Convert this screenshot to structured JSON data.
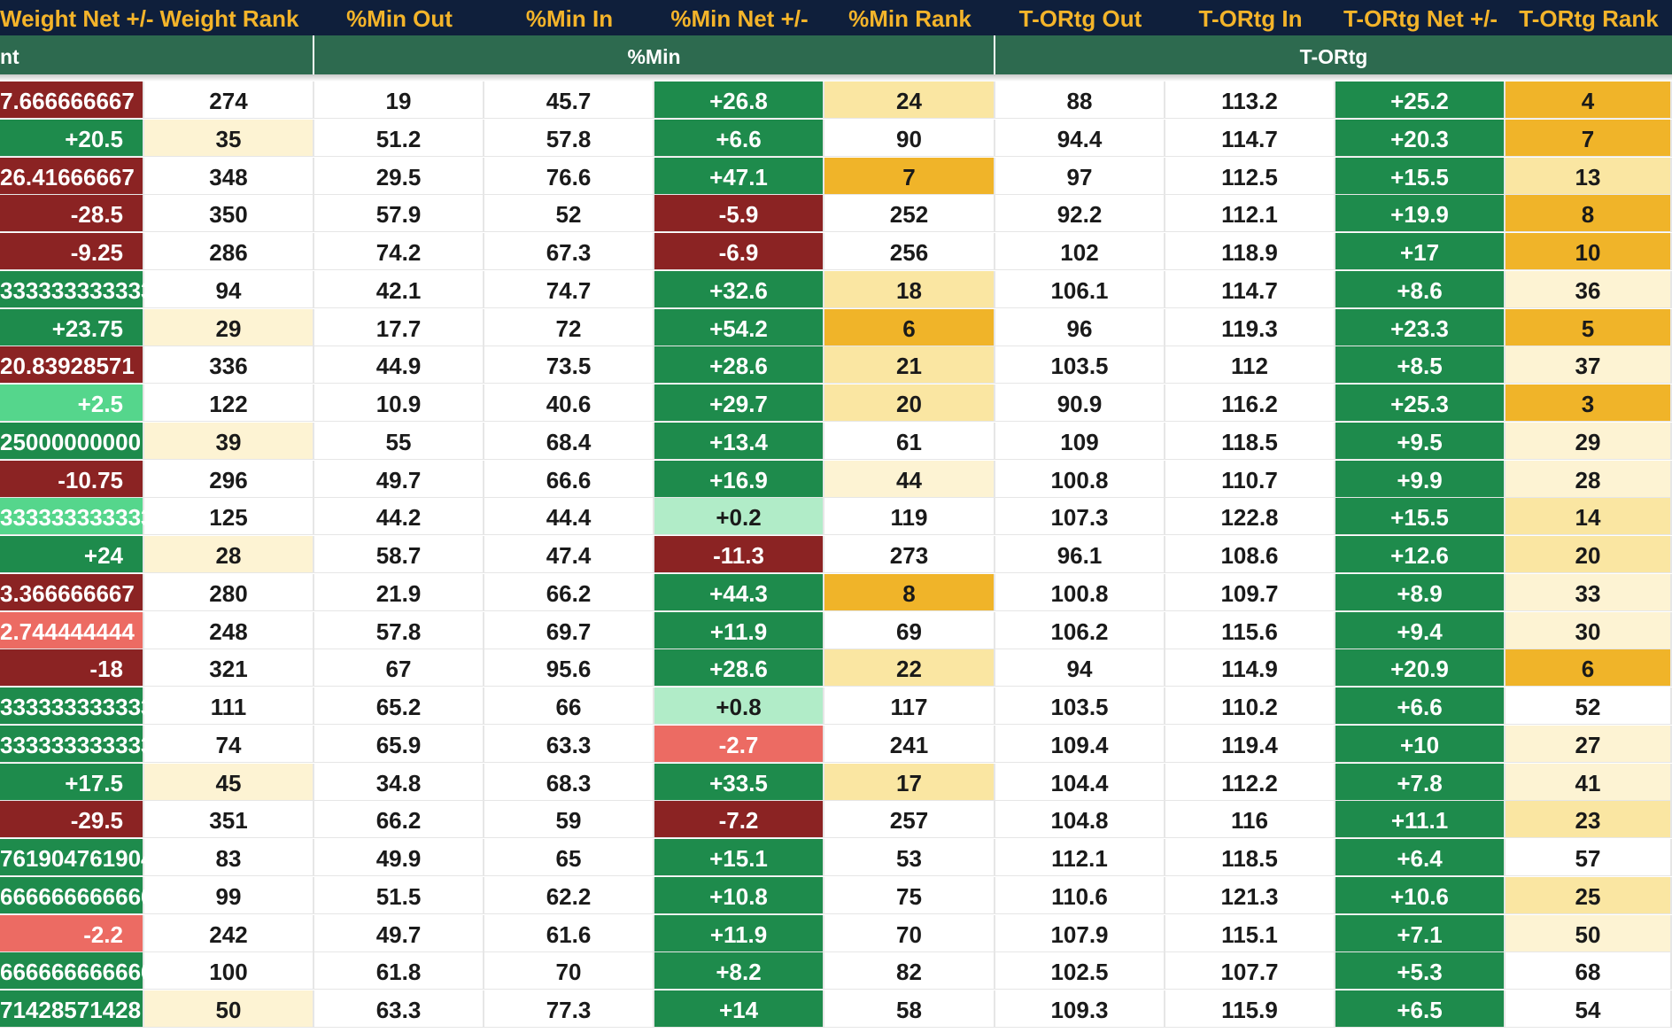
{
  "colors": {
    "header_bg": "#0f1f3b",
    "header_text": "#f4b42a",
    "group_bg": "#2d6a4f",
    "dr": "#8b2323",
    "lr": "#ec6b63",
    "dg": "#1e8b4c",
    "mg": "#55d68c",
    "lg": "#b1ecc8",
    "go": "#f0b429",
    "y": "#fae6a2",
    "ly": "#fdf3d3",
    "w": "#ffffff"
  },
  "headers": [
    "Weight Net +/-",
    "Weight Rank",
    "%Min Out",
    "%Min In",
    "%Min Net +/-",
    "%Min Rank",
    "T-ORtg Out",
    "T-ORtg In",
    "T-ORtg Net +/-",
    "T-ORtg Rank"
  ],
  "groups": [
    "nt",
    "",
    "%Min",
    "T-ORtg"
  ],
  "rows": [
    [
      [
        "7.666666667",
        "dr"
      ],
      [
        "274",
        "w"
      ],
      [
        "19",
        "w"
      ],
      [
        "45.7",
        "w"
      ],
      [
        "+26.8",
        "dg"
      ],
      [
        "24",
        "y"
      ],
      [
        "88",
        "w"
      ],
      [
        "113.2",
        "w"
      ],
      [
        "+25.2",
        "dg"
      ],
      [
        "4",
        "go"
      ]
    ],
    [
      [
        "+20.5",
        "dg"
      ],
      [
        "35",
        "ly"
      ],
      [
        "51.2",
        "w"
      ],
      [
        "57.8",
        "w"
      ],
      [
        "+6.6",
        "dg"
      ],
      [
        "90",
        "w"
      ],
      [
        "94.4",
        "w"
      ],
      [
        "114.7",
        "w"
      ],
      [
        "+20.3",
        "dg"
      ],
      [
        "7",
        "go"
      ]
    ],
    [
      [
        "26.41666667",
        "dr"
      ],
      [
        "348",
        "w"
      ],
      [
        "29.5",
        "w"
      ],
      [
        "76.6",
        "w"
      ],
      [
        "+47.1",
        "dg"
      ],
      [
        "7",
        "go"
      ],
      [
        "97",
        "w"
      ],
      [
        "112.5",
        "w"
      ],
      [
        "+15.5",
        "dg"
      ],
      [
        "13",
        "y"
      ]
    ],
    [
      [
        "-28.5",
        "dr"
      ],
      [
        "350",
        "w"
      ],
      [
        "57.9",
        "w"
      ],
      [
        "52",
        "w"
      ],
      [
        "-5.9",
        "dr"
      ],
      [
        "252",
        "w"
      ],
      [
        "92.2",
        "w"
      ],
      [
        "112.1",
        "w"
      ],
      [
        "+19.9",
        "dg"
      ],
      [
        "8",
        "go"
      ]
    ],
    [
      [
        "-9.25",
        "dr"
      ],
      [
        "286",
        "w"
      ],
      [
        "74.2",
        "w"
      ],
      [
        "67.3",
        "w"
      ],
      [
        "-6.9",
        "dr"
      ],
      [
        "256",
        "w"
      ],
      [
        "102",
        "w"
      ],
      [
        "118.9",
        "w"
      ],
      [
        "+17",
        "dg"
      ],
      [
        "10",
        "go"
      ]
    ],
    [
      [
        "3333333333333",
        "dg"
      ],
      [
        "94",
        "w"
      ],
      [
        "42.1",
        "w"
      ],
      [
        "74.7",
        "w"
      ],
      [
        "+32.6",
        "dg"
      ],
      [
        "18",
        "y"
      ],
      [
        "106.1",
        "w"
      ],
      [
        "114.7",
        "w"
      ],
      [
        "+8.6",
        "dg"
      ],
      [
        "36",
        "ly"
      ]
    ],
    [
      [
        "+23.75",
        "dg"
      ],
      [
        "29",
        "ly"
      ],
      [
        "17.7",
        "w"
      ],
      [
        "72",
        "w"
      ],
      [
        "+54.2",
        "dg"
      ],
      [
        "6",
        "go"
      ],
      [
        "96",
        "w"
      ],
      [
        "119.3",
        "w"
      ],
      [
        "+23.3",
        "dg"
      ],
      [
        "5",
        "go"
      ]
    ],
    [
      [
        "20.83928571",
        "dr"
      ],
      [
        "336",
        "w"
      ],
      [
        "44.9",
        "w"
      ],
      [
        "73.5",
        "w"
      ],
      [
        "+28.6",
        "dg"
      ],
      [
        "21",
        "y"
      ],
      [
        "103.5",
        "w"
      ],
      [
        "112",
        "w"
      ],
      [
        "+8.5",
        "dg"
      ],
      [
        "37",
        "ly"
      ]
    ],
    [
      [
        "+2.5",
        "mg"
      ],
      [
        "122",
        "w"
      ],
      [
        "10.9",
        "w"
      ],
      [
        "40.6",
        "w"
      ],
      [
        "+29.7",
        "dg"
      ],
      [
        "20",
        "y"
      ],
      [
        "90.9",
        "w"
      ],
      [
        "116.2",
        "w"
      ],
      [
        "+25.3",
        "dg"
      ],
      [
        "3",
        "go"
      ]
    ],
    [
      [
        "25000000000",
        "dg"
      ],
      [
        "39",
        "ly"
      ],
      [
        "55",
        "w"
      ],
      [
        "68.4",
        "w"
      ],
      [
        "+13.4",
        "dg"
      ],
      [
        "61",
        "w"
      ],
      [
        "109",
        "w"
      ],
      [
        "118.5",
        "w"
      ],
      [
        "+9.5",
        "dg"
      ],
      [
        "29",
        "ly"
      ]
    ],
    [
      [
        "-10.75",
        "dr"
      ],
      [
        "296",
        "w"
      ],
      [
        "49.7",
        "w"
      ],
      [
        "66.6",
        "w"
      ],
      [
        "+16.9",
        "dg"
      ],
      [
        "44",
        "ly"
      ],
      [
        "100.8",
        "w"
      ],
      [
        "110.7",
        "w"
      ],
      [
        "+9.9",
        "dg"
      ],
      [
        "28",
        "ly"
      ]
    ],
    [
      [
        "3333333333333",
        "mg"
      ],
      [
        "125",
        "w"
      ],
      [
        "44.2",
        "w"
      ],
      [
        "44.4",
        "w"
      ],
      [
        "+0.2",
        "lg"
      ],
      [
        "119",
        "w"
      ],
      [
        "107.3",
        "w"
      ],
      [
        "122.8",
        "w"
      ],
      [
        "+15.5",
        "dg"
      ],
      [
        "14",
        "y"
      ]
    ],
    [
      [
        "+24",
        "dg"
      ],
      [
        "28",
        "ly"
      ],
      [
        "58.7",
        "w"
      ],
      [
        "47.4",
        "w"
      ],
      [
        "-11.3",
        "dr"
      ],
      [
        "273",
        "w"
      ],
      [
        "96.1",
        "w"
      ],
      [
        "108.6",
        "w"
      ],
      [
        "+12.6",
        "dg"
      ],
      [
        "20",
        "y"
      ]
    ],
    [
      [
        "3.366666667",
        "dr"
      ],
      [
        "280",
        "w"
      ],
      [
        "21.9",
        "w"
      ],
      [
        "66.2",
        "w"
      ],
      [
        "+44.3",
        "dg"
      ],
      [
        "8",
        "go"
      ],
      [
        "100.8",
        "w"
      ],
      [
        "109.7",
        "w"
      ],
      [
        "+8.9",
        "dg"
      ],
      [
        "33",
        "ly"
      ]
    ],
    [
      [
        "2.744444444",
        "lr"
      ],
      [
        "248",
        "w"
      ],
      [
        "57.8",
        "w"
      ],
      [
        "69.7",
        "w"
      ],
      [
        "+11.9",
        "dg"
      ],
      [
        "69",
        "w"
      ],
      [
        "106.2",
        "w"
      ],
      [
        "115.6",
        "w"
      ],
      [
        "+9.4",
        "dg"
      ],
      [
        "30",
        "ly"
      ]
    ],
    [
      [
        "-18",
        "dr"
      ],
      [
        "321",
        "w"
      ],
      [
        "67",
        "w"
      ],
      [
        "95.6",
        "w"
      ],
      [
        "+28.6",
        "dg"
      ],
      [
        "22",
        "y"
      ],
      [
        "94",
        "w"
      ],
      [
        "114.9",
        "w"
      ],
      [
        "+20.9",
        "dg"
      ],
      [
        "6",
        "go"
      ]
    ],
    [
      [
        "3333333333333",
        "dg"
      ],
      [
        "111",
        "w"
      ],
      [
        "65.2",
        "w"
      ],
      [
        "66",
        "w"
      ],
      [
        "+0.8",
        "lg"
      ],
      [
        "117",
        "w"
      ],
      [
        "103.5",
        "w"
      ],
      [
        "110.2",
        "w"
      ],
      [
        "+6.6",
        "dg"
      ],
      [
        "52",
        "w"
      ]
    ],
    [
      [
        "3333333333333",
        "dg"
      ],
      [
        "74",
        "w"
      ],
      [
        "65.9",
        "w"
      ],
      [
        "63.3",
        "w"
      ],
      [
        "-2.7",
        "lr"
      ],
      [
        "241",
        "w"
      ],
      [
        "109.4",
        "w"
      ],
      [
        "119.4",
        "w"
      ],
      [
        "+10",
        "dg"
      ],
      [
        "27",
        "ly"
      ]
    ],
    [
      [
        "+17.5",
        "dg"
      ],
      [
        "45",
        "ly"
      ],
      [
        "34.8",
        "w"
      ],
      [
        "68.3",
        "w"
      ],
      [
        "+33.5",
        "dg"
      ],
      [
        "17",
        "y"
      ],
      [
        "104.4",
        "w"
      ],
      [
        "112.2",
        "w"
      ],
      [
        "+7.8",
        "dg"
      ],
      [
        "41",
        "ly"
      ]
    ],
    [
      [
        "-29.5",
        "dr"
      ],
      [
        "351",
        "w"
      ],
      [
        "66.2",
        "w"
      ],
      [
        "59",
        "w"
      ],
      [
        "-7.2",
        "dr"
      ],
      [
        "257",
        "w"
      ],
      [
        "104.8",
        "w"
      ],
      [
        "116",
        "w"
      ],
      [
        "+11.1",
        "dg"
      ],
      [
        "23",
        "y"
      ]
    ],
    [
      [
        "761904761904",
        "dg"
      ],
      [
        "83",
        "w"
      ],
      [
        "49.9",
        "w"
      ],
      [
        "65",
        "w"
      ],
      [
        "+15.1",
        "dg"
      ],
      [
        "53",
        "w"
      ],
      [
        "112.1",
        "w"
      ],
      [
        "118.5",
        "w"
      ],
      [
        "+6.4",
        "dg"
      ],
      [
        "57",
        "w"
      ]
    ],
    [
      [
        "6666666666666",
        "dg"
      ],
      [
        "99",
        "w"
      ],
      [
        "51.5",
        "w"
      ],
      [
        "62.2",
        "w"
      ],
      [
        "+10.8",
        "dg"
      ],
      [
        "75",
        "w"
      ],
      [
        "110.6",
        "w"
      ],
      [
        "121.3",
        "w"
      ],
      [
        "+10.6",
        "dg"
      ],
      [
        "25",
        "y"
      ]
    ],
    [
      [
        "-2.2",
        "lr"
      ],
      [
        "242",
        "w"
      ],
      [
        "49.7",
        "w"
      ],
      [
        "61.6",
        "w"
      ],
      [
        "+11.9",
        "dg"
      ],
      [
        "70",
        "w"
      ],
      [
        "107.9",
        "w"
      ],
      [
        "115.1",
        "w"
      ],
      [
        "+7.1",
        "dg"
      ],
      [
        "50",
        "ly"
      ]
    ],
    [
      [
        "6666666666666",
        "dg"
      ],
      [
        "100",
        "w"
      ],
      [
        "61.8",
        "w"
      ],
      [
        "70",
        "w"
      ],
      [
        "+8.2",
        "dg"
      ],
      [
        "82",
        "w"
      ],
      [
        "102.5",
        "w"
      ],
      [
        "107.7",
        "w"
      ],
      [
        "+5.3",
        "dg"
      ],
      [
        "68",
        "w"
      ]
    ],
    [
      [
        "71428571428",
        "dg"
      ],
      [
        "50",
        "ly"
      ],
      [
        "63.3",
        "w"
      ],
      [
        "77.3",
        "w"
      ],
      [
        "+14",
        "dg"
      ],
      [
        "58",
        "w"
      ],
      [
        "109.3",
        "w"
      ],
      [
        "115.9",
        "w"
      ],
      [
        "+6.5",
        "dg"
      ],
      [
        "54",
        "w"
      ]
    ]
  ]
}
